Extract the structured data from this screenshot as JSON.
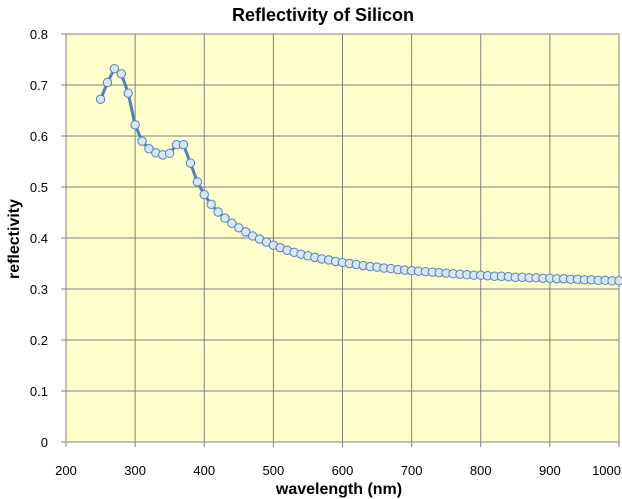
{
  "chart_data": {
    "type": "line",
    "title": "Reflectivity of Silicon",
    "xlabel": "wavelength (nm)",
    "ylabel": "reflectivity",
    "xlim": [
      200,
      1000
    ],
    "ylim": [
      0,
      0.8
    ],
    "xticks": [
      "200",
      "300",
      "400",
      "500",
      "600",
      "700",
      "800",
      "900",
      "1000"
    ],
    "yticks": [
      "0",
      "0.1",
      "0.2",
      "0.3",
      "0.4",
      "0.5",
      "0.6",
      "0.7",
      "0.8"
    ],
    "grid": true,
    "legend": "none",
    "colors": {
      "plot_background": "#ffffcc",
      "grid": "#808080",
      "line": "#4f81bd",
      "marker_fill": "#dce6f2",
      "marker_stroke": "#4f81bd"
    },
    "series": [
      {
        "x": [
          250,
          260,
          270,
          280,
          290,
          300,
          310,
          320,
          330,
          340,
          350,
          360,
          370,
          380,
          390,
          400,
          410,
          420,
          430,
          440,
          450,
          460,
          470,
          480,
          490,
          500,
          510,
          520,
          530,
          540,
          550,
          560,
          570,
          580,
          590,
          600,
          610,
          620,
          630,
          640,
          650,
          660,
          670,
          680,
          690,
          700,
          710,
          720,
          730,
          740,
          750,
          760,
          770,
          780,
          790,
          800,
          810,
          820,
          830,
          840,
          850,
          860,
          870,
          880,
          890,
          900,
          910,
          920,
          930,
          940,
          950,
          960,
          970,
          980,
          990,
          1000
        ],
        "values": [
          0.672,
          0.705,
          0.732,
          0.722,
          0.684,
          0.622,
          0.59,
          0.575,
          0.567,
          0.563,
          0.566,
          0.583,
          0.583,
          0.547,
          0.51,
          0.485,
          0.466,
          0.451,
          0.439,
          0.429,
          0.42,
          0.412,
          0.404,
          0.398,
          0.392,
          0.386,
          0.381,
          0.376,
          0.372,
          0.368,
          0.365,
          0.362,
          0.359,
          0.357,
          0.354,
          0.352,
          0.35,
          0.348,
          0.346,
          0.344,
          0.343,
          0.341,
          0.34,
          0.338,
          0.337,
          0.336,
          0.335,
          0.334,
          0.333,
          0.332,
          0.331,
          0.33,
          0.329,
          0.328,
          0.327,
          0.327,
          0.326,
          0.325,
          0.325,
          0.324,
          0.323,
          0.323,
          0.322,
          0.322,
          0.321,
          0.321,
          0.32,
          0.32,
          0.319,
          0.319,
          0.318,
          0.318,
          0.317,
          0.317,
          0.316,
          0.316
        ]
      }
    ]
  }
}
